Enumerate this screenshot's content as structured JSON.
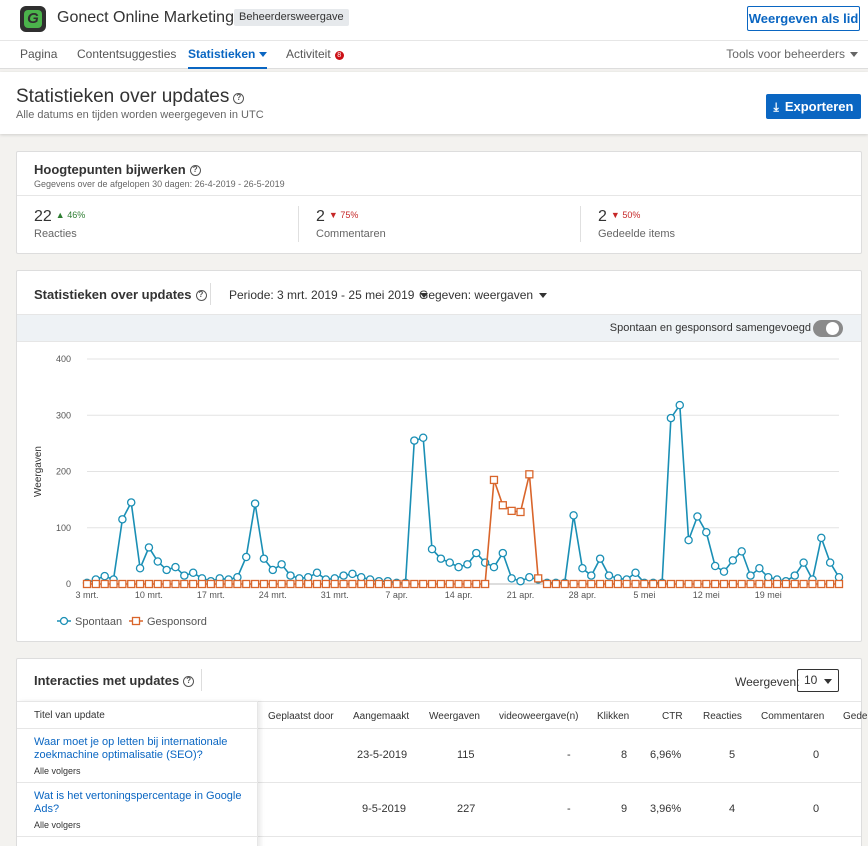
{
  "header": {
    "org_name": "Gonect Online Marketing",
    "admin_badge": "Beheerdersweergave",
    "view_as_member": "Weergeven als lid"
  },
  "tabs": {
    "items": [
      {
        "label": "Pagina"
      },
      {
        "label": "Contentsuggesties"
      },
      {
        "label": "Statistieken"
      },
      {
        "label": "Activiteit",
        "badge": "8"
      }
    ],
    "admin_tools": "Tools voor beheerders"
  },
  "page": {
    "title": "Statistieken over updates",
    "subtitle": "Alle datums en tijden worden weergegeven in UTC",
    "export": "Exporteren"
  },
  "highlights": {
    "title": "Hoogtepunten bijwerken",
    "subtitle": "Gegevens over de afgelopen 30 dagen: 26-4-2019 - 26-5-2019",
    "metrics": [
      {
        "value": "22",
        "change": "46%",
        "direction": "up",
        "label": "Reacties"
      },
      {
        "value": "2",
        "change": "75%",
        "direction": "down",
        "label": "Commentaren"
      },
      {
        "value": "2",
        "change": "50%",
        "direction": "down",
        "label": "Gedeelde items"
      }
    ]
  },
  "chart_card": {
    "title": "Statistieken over updates",
    "period": "Periode:  3 mrt. 2019 - 25 mei 2019",
    "data": "Gegeven: weergaven",
    "toggle_label": "Spontaan en gesponsord samengevoegd",
    "toggle_on": false
  },
  "chart_data": {
    "type": "line",
    "ylabel": "Weergaven",
    "ylim": [
      0,
      400
    ],
    "yticks": [
      0,
      100,
      200,
      300,
      400
    ],
    "xticks": [
      "3 mrt.",
      "10 mrt.",
      "17 mrt.",
      "24 mrt.",
      "31 mrt.",
      "7 apr.",
      "14 apr.",
      "21 apr.",
      "28 apr.",
      "5 mei",
      "12 mei",
      "19 mei"
    ],
    "legend_position": "bottom-left",
    "series": [
      {
        "name": "Spontaan",
        "color": "#1a8fb5",
        "marker": "circle",
        "values": [
          2,
          8,
          14,
          8,
          115,
          145,
          28,
          65,
          40,
          25,
          30,
          15,
          20,
          10,
          5,
          10,
          8,
          12,
          48,
          143,
          45,
          25,
          35,
          15,
          10,
          12,
          20,
          8,
          10,
          15,
          18,
          12,
          8,
          5,
          5,
          2,
          2,
          255,
          260,
          62,
          45,
          38,
          30,
          35,
          55,
          38,
          30,
          55,
          10,
          5,
          12,
          8,
          2,
          2,
          2,
          122,
          28,
          15,
          45,
          15,
          10,
          8,
          20,
          2,
          2,
          2,
          295,
          318,
          78,
          120,
          92,
          32,
          22,
          42,
          58,
          15,
          28,
          12,
          8,
          5,
          15,
          38,
          8,
          82,
          38,
          12
        ]
      },
      {
        "name": "Gesponsord",
        "color": "#d9652b",
        "marker": "square",
        "values": [
          0,
          0,
          0,
          0,
          0,
          0,
          0,
          0,
          0,
          0,
          0,
          0,
          0,
          0,
          0,
          0,
          0,
          0,
          0,
          0,
          0,
          0,
          0,
          0,
          0,
          0,
          0,
          0,
          0,
          0,
          0,
          0,
          0,
          0,
          0,
          0,
          0,
          0,
          0,
          0,
          0,
          0,
          0,
          0,
          0,
          0,
          185,
          140,
          130,
          128,
          195,
          10,
          0,
          0,
          0,
          0,
          0,
          0,
          0,
          0,
          0,
          0,
          0,
          0,
          0,
          0,
          0,
          0,
          0,
          0,
          0,
          0,
          0,
          0,
          0,
          0,
          0,
          0,
          0,
          0,
          0,
          0,
          0,
          0,
          0,
          0
        ]
      }
    ]
  },
  "table": {
    "title": "Interacties met updates",
    "show_label": "Weergeven:",
    "show_value": "10",
    "columns": [
      "Titel van update",
      "Geplaatst door",
      "Aangemaakt",
      "Weergaven",
      "videoweergave(n)",
      "Klikken",
      "CTR",
      "Reacties",
      "Commentaren",
      "Gede"
    ],
    "rows": [
      {
        "title": "Waar moet je op letten bij internationale zoekmachine optimalisatie (SEO)?",
        "audience": "Alle volgers",
        "posted_by": "",
        "created": "23-5-2019",
        "views": "115",
        "video": "-",
        "clicks": "8",
        "ctr": "6,96%",
        "reactions": "5",
        "comments": "0"
      },
      {
        "title": "Wat is het vertoningspercentage in Google Ads?",
        "audience": "Alle volgers",
        "posted_by": "",
        "created": "9-5-2019",
        "views": "227",
        "video": "-",
        "clicks": "9",
        "ctr": "3,96%",
        "reactions": "4",
        "comments": "0"
      }
    ]
  }
}
